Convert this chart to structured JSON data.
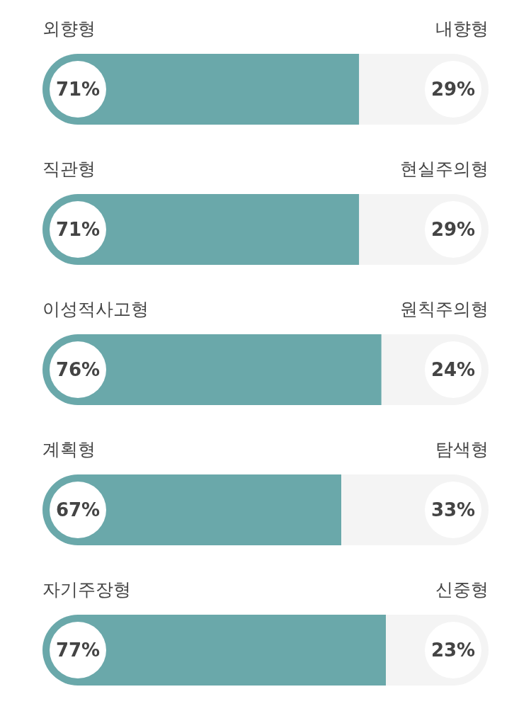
{
  "chart_data": [
    {
      "type": "bar",
      "orientation": "horizontal",
      "stacked": true,
      "categories": [
        null
      ],
      "series": [
        {
          "name": "외향형",
          "color": "#6aa8aa",
          "values": [
            71
          ],
          "value_labels": [
            "71%"
          ]
        },
        {
          "name": "내향형",
          "color": "#f4f4f4",
          "values": [
            29
          ],
          "value_labels": [
            "29%"
          ]
        }
      ]
    },
    {
      "type": "bar",
      "orientation": "horizontal",
      "stacked": true,
      "categories": [
        null
      ],
      "series": [
        {
          "name": "직관형",
          "color": "#6aa8aa",
          "values": [
            71
          ],
          "value_labels": [
            "71%"
          ]
        },
        {
          "name": "현실주의형",
          "color": "#f4f4f4",
          "values": [
            29
          ],
          "value_labels": [
            "29%"
          ]
        }
      ]
    },
    {
      "type": "bar",
      "orientation": "horizontal",
      "stacked": true,
      "categories": [
        null
      ],
      "series": [
        {
          "name": "이성적사고형",
          "color": "#6aa8aa",
          "values": [
            76
          ],
          "value_labels": [
            "76%"
          ]
        },
        {
          "name": "원칙주의형",
          "color": "#f4f4f4",
          "values": [
            24
          ],
          "value_labels": [
            "24%"
          ]
        }
      ]
    },
    {
      "type": "bar",
      "orientation": "horizontal",
      "stacked": true,
      "categories": [
        null
      ],
      "series": [
        {
          "name": "계획형",
          "color": "#6aa8aa",
          "values": [
            67
          ],
          "value_labels": [
            "67%"
          ]
        },
        {
          "name": "탐색형",
          "color": "#f4f4f4",
          "values": [
            33
          ],
          "value_labels": [
            "33%"
          ]
        }
      ]
    },
    {
      "type": "bar",
      "orientation": "horizontal",
      "stacked": true,
      "categories": [
        null
      ],
      "series": [
        {
          "name": "자기주장형",
          "color": "#6aa8aa",
          "values": [
            77
          ],
          "value_labels": [
            "77%"
          ]
        },
        {
          "name": "신중형",
          "color": "#f4f4f4",
          "values": [
            23
          ],
          "value_labels": [
            "23%"
          ]
        }
      ]
    }
  ]
}
